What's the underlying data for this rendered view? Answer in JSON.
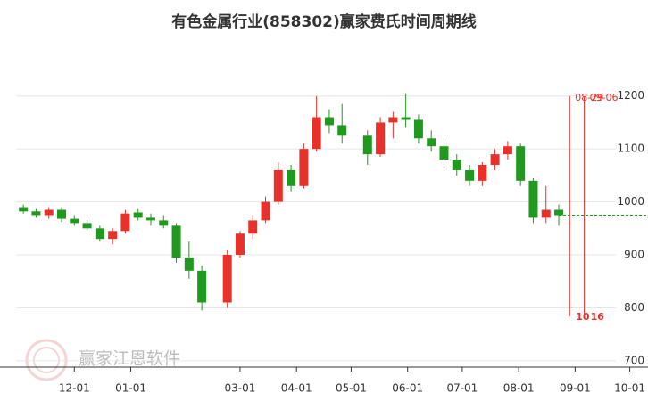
{
  "chart_data": {
    "type": "candlestick",
    "title": "有色金属行业(858302)赢家费氏时间周期线",
    "watermark": "赢家江恩软件",
    "x": [
      "11-03",
      "11-10",
      "11-17",
      "11-24",
      "12-01",
      "12-08",
      "12-15",
      "12-22",
      "12-29",
      "01-05",
      "01-12",
      "01-19",
      "01-26",
      "02-02",
      "02-09",
      "02-23",
      "03-01",
      "03-08",
      "03-15",
      "03-22",
      "03-29",
      "04-05",
      "04-12",
      "04-19",
      "04-26",
      "05-10",
      "05-17",
      "05-24",
      "05-31",
      "06-07",
      "06-14",
      "06-21",
      "06-28",
      "07-05",
      "07-12",
      "07-19",
      "07-26",
      "08-02",
      "08-09",
      "08-16",
      "08-23"
    ],
    "open": [
      990,
      982,
      975,
      985,
      968,
      960,
      950,
      930,
      945,
      980,
      970,
      965,
      955,
      895,
      870,
      810,
      900,
      940,
      965,
      1000,
      1060,
      1030,
      1100,
      1160,
      1145,
      1125,
      1090,
      1150,
      1160,
      1155,
      1120,
      1105,
      1080,
      1060,
      1040,
      1070,
      1090,
      1105,
      1040,
      970,
      985
    ],
    "high": [
      995,
      988,
      990,
      990,
      975,
      965,
      955,
      950,
      985,
      988,
      978,
      975,
      960,
      925,
      880,
      910,
      945,
      975,
      1010,
      1075,
      1070,
      1110,
      1200,
      1175,
      1185,
      1135,
      1160,
      1170,
      1205,
      1165,
      1135,
      1115,
      1090,
      1070,
      1075,
      1100,
      1115,
      1110,
      1045,
      1030,
      995
    ],
    "low": [
      978,
      970,
      968,
      962,
      955,
      945,
      925,
      920,
      940,
      965,
      955,
      950,
      885,
      855,
      795,
      800,
      895,
      930,
      960,
      995,
      1020,
      1025,
      1095,
      1130,
      1110,
      1070,
      1085,
      1120,
      1140,
      1110,
      1095,
      1070,
      1050,
      1030,
      1030,
      1060,
      1080,
      1030,
      960,
      960,
      955
    ],
    "close": [
      982,
      975,
      985,
      968,
      960,
      950,
      930,
      945,
      978,
      970,
      965,
      955,
      895,
      870,
      810,
      900,
      940,
      965,
      1000,
      1060,
      1030,
      1100,
      1160,
      1145,
      1125,
      1090,
      1150,
      1160,
      1155,
      1120,
      1105,
      1080,
      1060,
      1040,
      1070,
      1090,
      1105,
      1040,
      970,
      985,
      975
    ],
    "up_color": "#e8312a",
    "down_color": "#1f9a1f",
    "xlim": [
      "10-30",
      "10-11"
    ],
    "xticks": [
      "12-01",
      "01-01",
      "03-01",
      "04-01",
      "05-01",
      "06-01",
      "07-01",
      "08-01",
      "09-01",
      "10-01"
    ],
    "ylim": [
      688,
      1314
    ],
    "yticks": [
      700,
      800,
      900,
      1000,
      1100,
      1200
    ],
    "grid": true,
    "reference_line": {
      "value": 975,
      "color": "#1f9a1f"
    },
    "annotations": [
      {
        "date": "08-29",
        "label": "08-29",
        "count": "10",
        "color": "#e8312a"
      },
      {
        "date": "09-06",
        "label": "09-06",
        "count": "16",
        "color": "#e8312a"
      }
    ]
  }
}
